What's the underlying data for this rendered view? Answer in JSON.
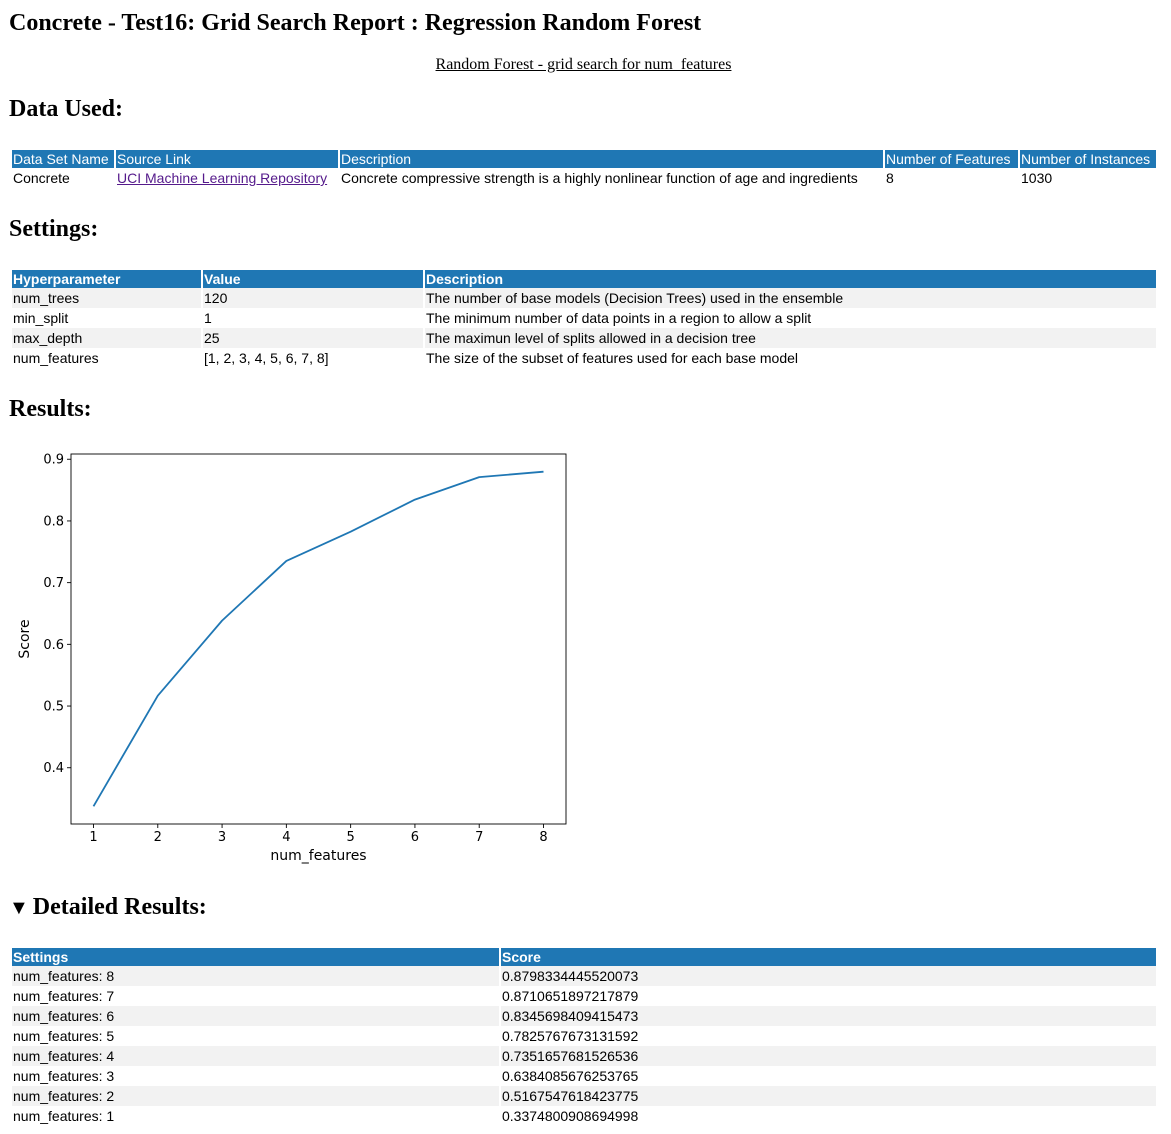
{
  "page": {
    "title": "Concrete - Test16: Grid Search Report : Regression Random Forest",
    "subtitle": "Random Forest - grid search for num_features"
  },
  "data_used": {
    "heading": "Data Used:",
    "headers": [
      "Data Set Name",
      "Source Link",
      "Description",
      "Number of Features",
      "Number of Instances"
    ],
    "row": {
      "name": "Concrete",
      "source_link": "UCI Machine Learning Repository",
      "description": "Concrete compressive strength is a highly nonlinear function of age and ingredients",
      "num_features": "8",
      "num_instances": "1030"
    }
  },
  "settings": {
    "heading": "Settings:",
    "headers": [
      "Hyperparameter",
      "Value",
      "Description"
    ],
    "rows": [
      {
        "param": "num_trees",
        "value": "120",
        "description": "The number of base models (Decision Trees) used in the ensemble"
      },
      {
        "param": "min_split",
        "value": "1",
        "description": "The minimum number of data points in a region to allow a split"
      },
      {
        "param": "max_depth",
        "value": "25",
        "description": "The maximun level of splits allowed in a decision tree"
      },
      {
        "param": "num_features",
        "value": "[1, 2, 3, 4, 5, 6, 7, 8]",
        "description": "The size of the subset of features used for each base model"
      }
    ]
  },
  "results": {
    "heading": "Results:"
  },
  "chart_data": {
    "type": "line",
    "title": "",
    "xlabel": "num_features",
    "ylabel": "Score",
    "x": [
      1,
      2,
      3,
      4,
      5,
      6,
      7,
      8
    ],
    "series": [
      {
        "values": [
          0.3374800908694998,
          0.5167547618423775,
          0.6384085676253765,
          0.7351657681526536,
          0.7825767673131592,
          0.8345698409415473,
          0.8710651897217879,
          0.8798334445520073
        ]
      }
    ],
    "xticks": [
      "1",
      "2",
      "3",
      "4",
      "5",
      "6",
      "7",
      "8"
    ],
    "yticks": [
      "0.4",
      "0.5",
      "0.6",
      "0.7",
      "0.8",
      "0.9"
    ],
    "xlim": [
      0.65,
      8.35
    ],
    "ylim": [
      0.3088,
      0.9085
    ],
    "grid": false,
    "line_color": "#1f77b4"
  },
  "detailed": {
    "heading": "Detailed Results:",
    "toggle_glyph": "▼",
    "headers": [
      "Settings",
      "Score"
    ],
    "rows": [
      {
        "setting": "num_features: 8",
        "score": "0.8798334445520073"
      },
      {
        "setting": "num_features: 7",
        "score": "0.8710651897217879"
      },
      {
        "setting": "num_features: 6",
        "score": "0.8345698409415473"
      },
      {
        "setting": "num_features: 5",
        "score": "0.7825767673131592"
      },
      {
        "setting": "num_features: 4",
        "score": "0.7351657681526536"
      },
      {
        "setting": "num_features: 3",
        "score": "0.6384085676253765"
      },
      {
        "setting": "num_features: 2",
        "score": "0.5167547618423775"
      },
      {
        "setting": "num_features: 1",
        "score": "0.3374800908694998"
      }
    ]
  },
  "colors": {
    "header_bg": "#1f77b4",
    "header_text": "#ffffff",
    "stripe": "#f2f2f2",
    "link": "#551a8b"
  }
}
